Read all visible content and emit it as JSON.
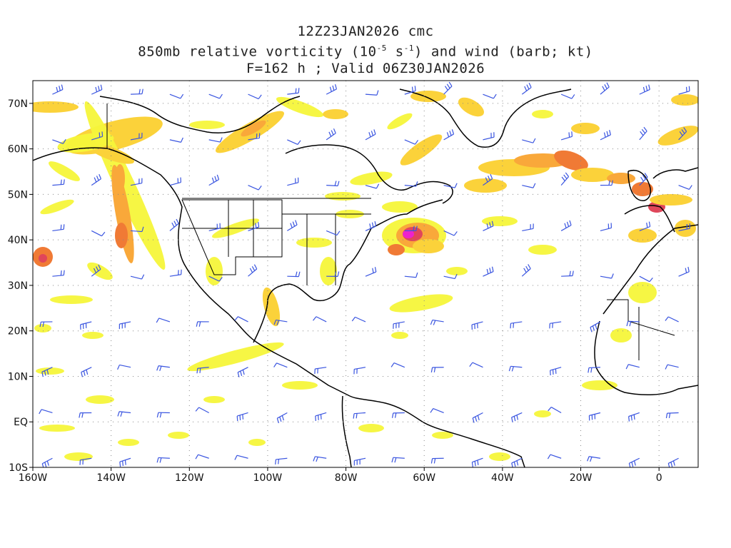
{
  "title": {
    "line1": "12Z23JAN2026 cmc",
    "line2_pre": "850mb relative vorticity (10",
    "line2_exp1": "-5",
    "line2_mid": " s",
    "line2_exp2": "-1",
    "line2_post": ") and wind (barb; kt)",
    "line3": "F=162 h ; Valid 06Z30JAN2026"
  },
  "map": {
    "projection": "cylindrical equidistant",
    "lon_range": [
      -160,
      10
    ],
    "lat_range": [
      -10,
      75
    ],
    "grid": "dotted",
    "contour_colors": [
      "#f5f53a",
      "#fbd23a",
      "#f9a83a",
      "#f07a35",
      "#e0465a",
      "#ee22cc"
    ],
    "coastline_color": "#000000",
    "barb_color": "#3a55e0",
    "lon_ticks": [
      {
        "lon": -160,
        "label": "160W"
      },
      {
        "lon": -140,
        "label": "140W"
      },
      {
        "lon": -120,
        "label": "120W"
      },
      {
        "lon": -100,
        "label": "100W"
      },
      {
        "lon": -80,
        "label": "80W"
      },
      {
        "lon": -60,
        "label": "60W"
      },
      {
        "lon": -40,
        "label": "40W"
      },
      {
        "lon": -20,
        "label": "20W"
      },
      {
        "lon": 0,
        "label": "0"
      }
    ],
    "lat_ticks": [
      {
        "lat": 70,
        "label": "70N"
      },
      {
        "lat": 60,
        "label": "60N"
      },
      {
        "lat": 50,
        "label": "50N"
      },
      {
        "lat": 40,
        "label": "40N"
      },
      {
        "lat": 30,
        "label": "30N"
      },
      {
        "lat": 20,
        "label": "20N"
      },
      {
        "lat": 10,
        "label": "10N"
      },
      {
        "lat": 0,
        "label": "EQ"
      },
      {
        "lat": -10,
        "label": "10S"
      }
    ]
  }
}
